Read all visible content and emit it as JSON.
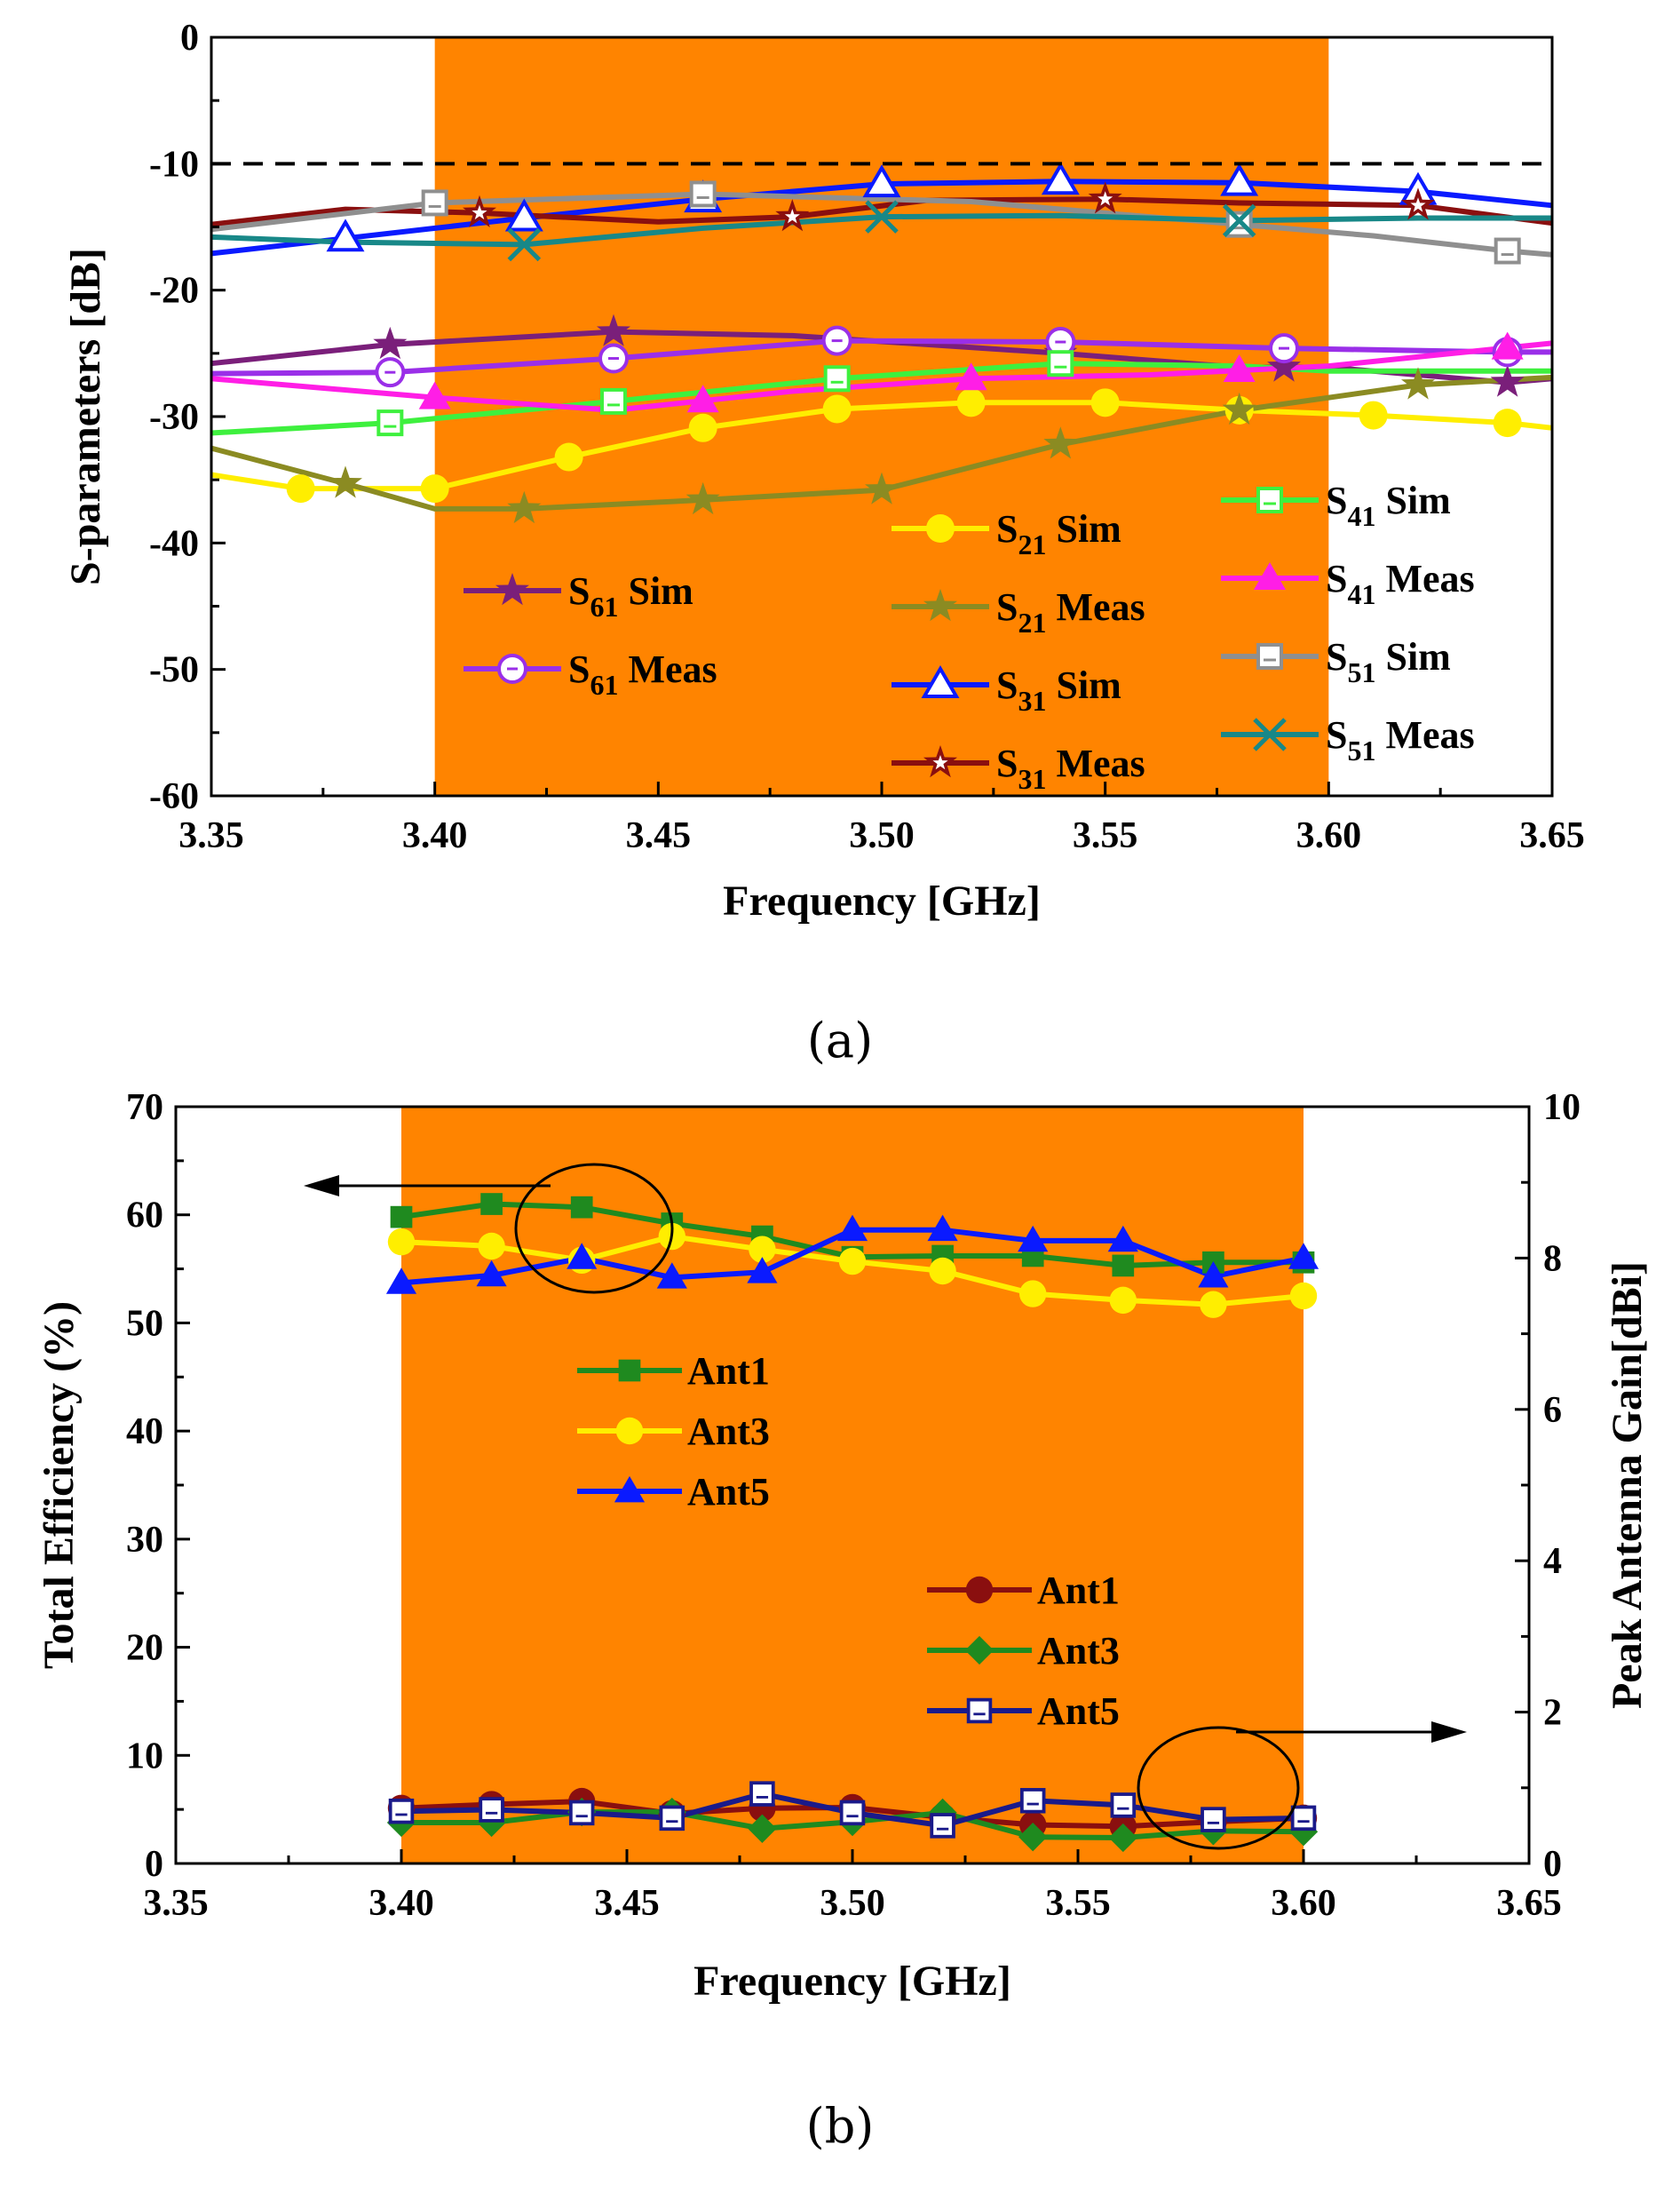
{
  "chart_data": [
    {
      "type": "line",
      "caption": "(a)",
      "xlabel": "Frequency [GHz]",
      "ylabel": "S-parameters [dB]",
      "xlim": [
        3.35,
        3.65
      ],
      "ylim": [
        -60,
        0
      ],
      "xticks": [
        3.35,
        3.4,
        3.45,
        3.5,
        3.55,
        3.6,
        3.65
      ],
      "xticklabels": [
        "3.35",
        "3.40",
        "3.45",
        "3.50",
        "3.55",
        "3.60",
        "3.65"
      ],
      "yticks": [
        -60,
        -50,
        -40,
        -30,
        -20,
        -10,
        0
      ],
      "yticklabels": [
        "-60",
        "-50",
        "-40",
        "-30",
        "-20",
        "-10",
        "0"
      ],
      "band": [
        3.4,
        3.6
      ],
      "band_color": "#ff8400",
      "reference_line": {
        "y": -10,
        "style": "dashed",
        "color": "#000000"
      },
      "series": [
        {
          "sub": "61",
          "suffix": " Sim",
          "color": "#7a1f7a",
          "marker": "star",
          "x": [
            3.35,
            3.39,
            3.44,
            3.48,
            3.54,
            3.58,
            3.6,
            3.64,
            3.65
          ],
          "y": [
            -25.8,
            -24.3,
            -23.3,
            -23.6,
            -25.0,
            -26.1,
            -26.1,
            -27.3,
            -27.0
          ],
          "marker_x": [
            3.39,
            3.44,
            3.54,
            3.59,
            3.64
          ]
        },
        {
          "sub": "61",
          "suffix": " Meas",
          "color": "#9a2fe8",
          "marker": "circle-open",
          "x": [
            3.35,
            3.39,
            3.44,
            3.49,
            3.54,
            3.59,
            3.64,
            3.65
          ],
          "y": [
            -26.6,
            -26.5,
            -25.4,
            -24.0,
            -24.1,
            -24.6,
            -24.9,
            -24.9
          ],
          "marker_x": [
            3.39,
            3.44,
            3.49,
            3.54,
            3.59,
            3.64
          ]
        },
        {
          "sub": "21",
          "suffix": " Sim",
          "color": "#ffee00",
          "marker": "circle",
          "x": [
            3.35,
            3.37,
            3.4,
            3.43,
            3.46,
            3.49,
            3.52,
            3.55,
            3.58,
            3.61,
            3.64,
            3.65
          ],
          "y": [
            -34.6,
            -35.7,
            -35.7,
            -33.2,
            -30.9,
            -29.4,
            -28.9,
            -28.9,
            -29.5,
            -29.9,
            -30.5,
            -30.9
          ],
          "marker_x": [
            3.37,
            3.4,
            3.43,
            3.46,
            3.49,
            3.52,
            3.55,
            3.58,
            3.61,
            3.64
          ]
        },
        {
          "sub": "21",
          "suffix": " Meas",
          "color": "#8b8b22",
          "marker": "star",
          "x": [
            3.35,
            3.38,
            3.4,
            3.42,
            3.46,
            3.5,
            3.54,
            3.58,
            3.62,
            3.65
          ],
          "y": [
            -32.5,
            -35.3,
            -37.3,
            -37.3,
            -36.6,
            -35.8,
            -32.2,
            -29.5,
            -27.5,
            -26.9
          ],
          "marker_x": [
            3.38,
            3.42,
            3.46,
            3.5,
            3.54,
            3.58,
            3.62
          ]
        },
        {
          "sub": "31",
          "suffix": " Sim",
          "color": "#0a1aff",
          "marker": "triangle-open",
          "x": [
            3.35,
            3.38,
            3.42,
            3.46,
            3.5,
            3.54,
            3.58,
            3.62,
            3.65
          ],
          "y": [
            -17.1,
            -15.9,
            -14.3,
            -12.8,
            -11.6,
            -11.4,
            -11.5,
            -12.2,
            -13.3
          ],
          "marker_x": [
            3.38,
            3.42,
            3.46,
            3.5,
            3.54,
            3.58,
            3.62
          ]
        },
        {
          "sub": "31",
          "suffix": " Meas",
          "color": "#8a0f0f",
          "marker": "star-inner",
          "x": [
            3.35,
            3.38,
            3.41,
            3.45,
            3.48,
            3.51,
            3.55,
            3.58,
            3.62,
            3.65
          ],
          "y": [
            -14.8,
            -13.6,
            -13.9,
            -14.6,
            -14.2,
            -12.9,
            -12.8,
            -13.1,
            -13.3,
            -14.7
          ],
          "marker_x": [
            3.41,
            3.48,
            3.55,
            3.62
          ]
        },
        {
          "sub": "41",
          "suffix": " Sim",
          "color": "#3ef03e",
          "marker": "square-open",
          "x": [
            3.35,
            3.39,
            3.44,
            3.49,
            3.54,
            3.58,
            3.6,
            3.65
          ],
          "y": [
            -31.3,
            -30.5,
            -28.8,
            -27.0,
            -25.8,
            -26.0,
            -26.4,
            -26.4
          ],
          "marker_x": [
            3.39,
            3.44,
            3.49,
            3.54
          ]
        },
        {
          "sub": "41",
          "suffix": " Meas",
          "color": "#ff1ee6",
          "marker": "triangle",
          "x": [
            3.35,
            3.4,
            3.44,
            3.48,
            3.52,
            3.56,
            3.6,
            3.65
          ],
          "y": [
            -27.0,
            -28.5,
            -29.5,
            -28.0,
            -27.0,
            -26.7,
            -26.0,
            -24.2
          ],
          "marker_x": [
            3.4,
            3.46,
            3.52,
            3.58,
            3.64
          ]
        },
        {
          "sub": "51",
          "suffix": " Sim",
          "color": "#8f8f8f",
          "marker": "square-open",
          "x": [
            3.35,
            3.4,
            3.46,
            3.52,
            3.58,
            3.61,
            3.64,
            3.65
          ],
          "y": [
            -15.2,
            -13.1,
            -12.4,
            -13.0,
            -14.8,
            -15.7,
            -16.9,
            -17.2
          ],
          "marker_x": [
            3.4,
            3.46,
            3.58,
            3.64
          ]
        },
        {
          "sub": "51",
          "suffix": " Meas",
          "color": "#188888",
          "marker": "x",
          "x": [
            3.35,
            3.38,
            3.42,
            3.46,
            3.5,
            3.54,
            3.58,
            3.62,
            3.65
          ],
          "y": [
            -15.8,
            -16.2,
            -16.4,
            -15.1,
            -14.2,
            -14.1,
            -14.5,
            -14.3,
            -14.3
          ],
          "marker_x": [
            3.42,
            3.5,
            3.58
          ]
        }
      ],
      "legend_columns": [
        [
          0,
          1
        ],
        [
          2,
          3,
          4,
          5
        ],
        [
          6,
          7,
          8,
          9
        ]
      ]
    },
    {
      "type": "line",
      "caption": "(b)",
      "xlabel": "Frequency [GHz]",
      "ylabel": "Total Efficiency (%)",
      "y2label": "Peak Antenna Gain[dBi]",
      "xlim": [
        3.35,
        3.65
      ],
      "ylim": [
        0,
        70
      ],
      "y2lim": [
        0,
        10
      ],
      "xticks": [
        3.35,
        3.4,
        3.45,
        3.5,
        3.55,
        3.6,
        3.65
      ],
      "xticklabels": [
        "3.35",
        "3.40",
        "3.45",
        "3.50",
        "3.55",
        "3.60",
        "3.65"
      ],
      "yticks": [
        0,
        10,
        20,
        30,
        40,
        50,
        60,
        70
      ],
      "yticklabels": [
        "0",
        "10",
        "20",
        "30",
        "40",
        "50",
        "60",
        "70"
      ],
      "y2ticks": [
        0,
        2,
        4,
        6,
        8,
        10
      ],
      "y2ticklabels": [
        "0",
        "2",
        "4",
        "6",
        "8",
        "10"
      ],
      "band": [
        3.4,
        3.6
      ],
      "band_color": "#ff8400",
      "x": [
        3.4,
        3.42,
        3.44,
        3.46,
        3.48,
        3.5,
        3.52,
        3.54,
        3.56,
        3.58,
        3.6
      ],
      "efficiency_series": [
        {
          "name": "Ant1",
          "color": "#1f8a1f",
          "marker": "square",
          "values": [
            59.8,
            61.0,
            60.7,
            59.2,
            58.0,
            56.1,
            56.2,
            56.2,
            55.3,
            55.6,
            55.6
          ]
        },
        {
          "name": "Ant3",
          "color": "#ffee00",
          "marker": "circle",
          "values": [
            57.5,
            57.1,
            55.8,
            58.0,
            56.8,
            55.7,
            54.8,
            52.7,
            52.1,
            51.7,
            52.5
          ]
        },
        {
          "name": "Ant5",
          "color": "#0a1aff",
          "marker": "triangle",
          "values": [
            53.7,
            54.4,
            56.0,
            54.2,
            54.7,
            58.6,
            58.6,
            57.6,
            57.6,
            54.3,
            56.0
          ]
        }
      ],
      "gain_series": [
        {
          "name": "Ant1",
          "color": "#8a0f0f",
          "marker": "circle",
          "values": [
            0.73,
            0.78,
            0.82,
            0.66,
            0.73,
            0.74,
            0.61,
            0.51,
            0.49,
            0.55,
            0.6
          ]
        },
        {
          "name": "Ant3",
          "color": "#1f8a1f",
          "marker": "diamond",
          "values": [
            0.54,
            0.54,
            0.68,
            0.68,
            0.46,
            0.55,
            0.67,
            0.35,
            0.34,
            0.43,
            0.42
          ]
        },
        {
          "name": "Ant5",
          "color": "#1a1a8a",
          "marker": "square-open",
          "values": [
            0.69,
            0.71,
            0.67,
            0.6,
            0.92,
            0.67,
            0.5,
            0.83,
            0.77,
            0.58,
            0.6
          ]
        }
      ]
    }
  ]
}
